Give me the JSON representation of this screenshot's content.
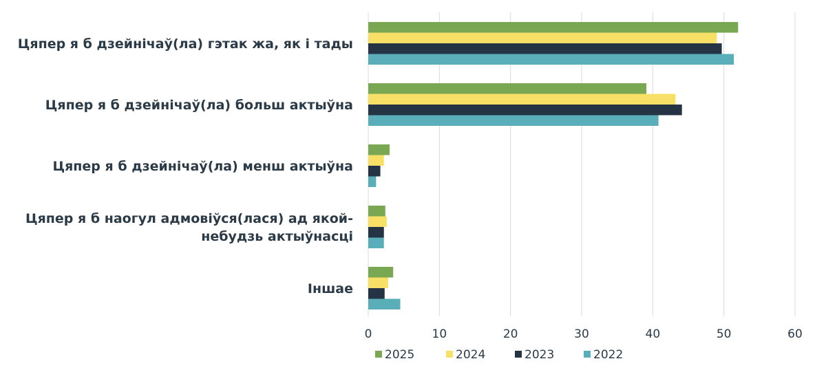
{
  "chart_data": {
    "type": "bar",
    "orientation": "horizontal",
    "categories": [
      [
        "Цяпер я б дзейнічаў(ла) гэтак жа, як і тады"
      ],
      [
        "Цяпер я б дзейнічаў(ла) больш актыўна"
      ],
      [
        "Цяпер я б дзейнічаў(ла) менш актыўна"
      ],
      [
        "Цяпер я б наогул адмовіўся(лася) ад якой-",
        "небудзь актыўнасці"
      ],
      [
        "Іншае"
      ]
    ],
    "series": [
      {
        "name": "2025",
        "color": "#7aa852",
        "values": [
          52.0,
          39.1,
          3.0,
          2.4,
          3.5
        ]
      },
      {
        "name": "2024",
        "color": "#f8e066",
        "values": [
          49.0,
          43.2,
          2.2,
          2.6,
          2.8
        ]
      },
      {
        "name": "2023",
        "color": "#243444",
        "values": [
          49.7,
          44.1,
          1.7,
          2.2,
          2.3
        ]
      },
      {
        "name": "2022",
        "color": "#5aaeba",
        "values": [
          51.4,
          40.8,
          1.1,
          2.2,
          4.5
        ]
      }
    ],
    "x_ticks": [
      "0",
      "10",
      "20",
      "30",
      "40",
      "50",
      "60"
    ],
    "xlim": [
      0,
      60
    ],
    "grid": true,
    "legend_position": "bottom"
  }
}
